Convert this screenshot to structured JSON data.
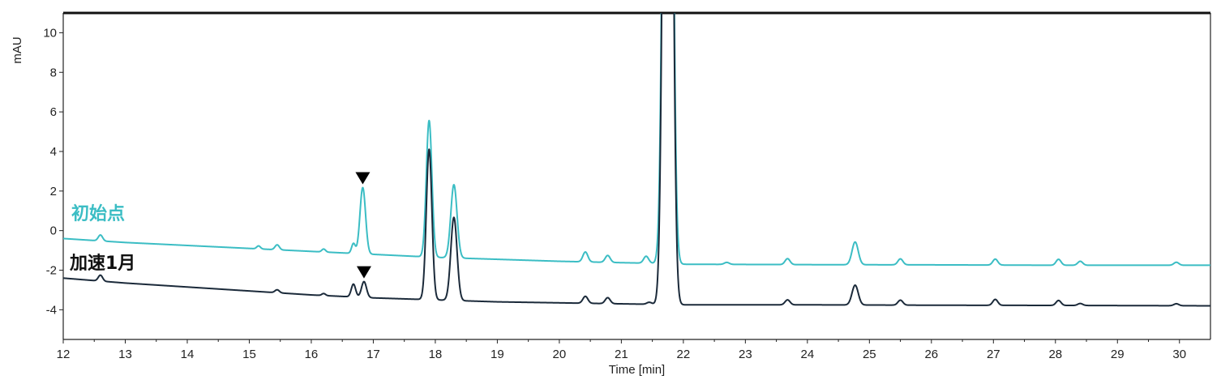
{
  "chart_data": {
    "type": "line",
    "title": "",
    "xlabel": "Time [min]",
    "ylabel": "mAU",
    "xlim": [
      12,
      30.5
    ],
    "ylim": [
      -5.5,
      11
    ],
    "xticks": [
      "12",
      "13",
      "14",
      "15",
      "16",
      "17",
      "18",
      "19",
      "20",
      "21",
      "22",
      "23",
      "24",
      "25",
      "26",
      "27",
      "28",
      "29",
      "30"
    ],
    "yticks": [
      "10",
      "8",
      "6",
      "4",
      "2",
      "0",
      "-2",
      "-4"
    ],
    "grid": false,
    "colors": {
      "series_0": "#3bbdc4",
      "series_1": "#1b2a3a",
      "marker": "#000000"
    },
    "series": [
      {
        "name": "初始点",
        "color": "#3bbdc4",
        "baseline": [
          [
            12,
            -0.4
          ],
          [
            13,
            -0.6
          ],
          [
            14,
            -0.75
          ],
          [
            15,
            -0.9
          ],
          [
            16,
            -1.05
          ],
          [
            17,
            -1.2
          ],
          [
            18,
            -1.35
          ],
          [
            19,
            -1.45
          ],
          [
            20,
            -1.55
          ],
          [
            21,
            -1.62
          ],
          [
            21.5,
            -1.65
          ],
          [
            22,
            -1.7
          ],
          [
            24,
            -1.72
          ],
          [
            26,
            -1.73
          ],
          [
            28,
            -1.75
          ],
          [
            30.5,
            -1.75
          ]
        ],
        "peaks": [
          {
            "t": 12.6,
            "h": 0.3,
            "w": 0.035
          },
          {
            "t": 15.15,
            "h": 0.15,
            "w": 0.03
          },
          {
            "t": 15.45,
            "h": 0.25,
            "w": 0.035
          },
          {
            "t": 16.2,
            "h": 0.15,
            "w": 0.03
          },
          {
            "t": 16.68,
            "h": 0.5,
            "w": 0.03
          },
          {
            "t": 16.83,
            "h": 3.35,
            "w": 0.045
          },
          {
            "t": 17.9,
            "h": 6.9,
            "w": 0.045
          },
          {
            "t": 18.3,
            "h": 3.7,
            "w": 0.05
          },
          {
            "t": 20.42,
            "h": 0.5,
            "w": 0.04
          },
          {
            "t": 20.78,
            "h": 0.35,
            "w": 0.04
          },
          {
            "t": 21.4,
            "h": 0.35,
            "w": 0.04
          },
          {
            "t": 21.75,
            "h": 60,
            "w": 0.06
          },
          {
            "t": 22.7,
            "h": 0.1,
            "w": 0.04
          },
          {
            "t": 23.68,
            "h": 0.3,
            "w": 0.04
          },
          {
            "t": 24.77,
            "h": 1.15,
            "w": 0.05
          },
          {
            "t": 25.5,
            "h": 0.3,
            "w": 0.04
          },
          {
            "t": 27.03,
            "h": 0.3,
            "w": 0.04
          },
          {
            "t": 28.05,
            "h": 0.3,
            "w": 0.04
          },
          {
            "t": 28.4,
            "h": 0.2,
            "w": 0.04
          },
          {
            "t": 29.95,
            "h": 0.15,
            "w": 0.04
          }
        ],
        "marker_at": 16.83
      },
      {
        "name": "加速1月",
        "color": "#1b2a3a",
        "baseline": [
          [
            12,
            -2.4
          ],
          [
            13,
            -2.65
          ],
          [
            14,
            -2.85
          ],
          [
            15,
            -3.05
          ],
          [
            16,
            -3.25
          ],
          [
            17,
            -3.4
          ],
          [
            18,
            -3.5
          ],
          [
            19,
            -3.6
          ],
          [
            20,
            -3.65
          ],
          [
            21,
            -3.7
          ],
          [
            22,
            -3.75
          ],
          [
            24,
            -3.75
          ],
          [
            26,
            -3.77
          ],
          [
            28,
            -3.78
          ],
          [
            30.5,
            -3.8
          ]
        ],
        "peaks": [
          {
            "t": 12.6,
            "h": 0.3,
            "w": 0.035
          },
          {
            "t": 15.45,
            "h": 0.15,
            "w": 0.035
          },
          {
            "t": 16.2,
            "h": 0.1,
            "w": 0.03
          },
          {
            "t": 16.68,
            "h": 0.65,
            "w": 0.035
          },
          {
            "t": 16.85,
            "h": 0.8,
            "w": 0.04
          },
          {
            "t": 17.9,
            "h": 7.6,
            "w": 0.045
          },
          {
            "t": 18.3,
            "h": 4.2,
            "w": 0.05
          },
          {
            "t": 20.42,
            "h": 0.35,
            "w": 0.04
          },
          {
            "t": 20.78,
            "h": 0.3,
            "w": 0.04
          },
          {
            "t": 21.45,
            "h": 0.1,
            "w": 0.04
          },
          {
            "t": 21.75,
            "h": 60,
            "w": 0.06
          },
          {
            "t": 23.68,
            "h": 0.25,
            "w": 0.04
          },
          {
            "t": 24.77,
            "h": 1.0,
            "w": 0.05
          },
          {
            "t": 25.5,
            "h": 0.25,
            "w": 0.04
          },
          {
            "t": 27.03,
            "h": 0.3,
            "w": 0.04
          },
          {
            "t": 28.05,
            "h": 0.25,
            "w": 0.04
          },
          {
            "t": 28.4,
            "h": 0.1,
            "w": 0.04
          },
          {
            "t": 29.95,
            "h": 0.1,
            "w": 0.04
          }
        ],
        "marker_at": 16.85
      }
    ]
  }
}
